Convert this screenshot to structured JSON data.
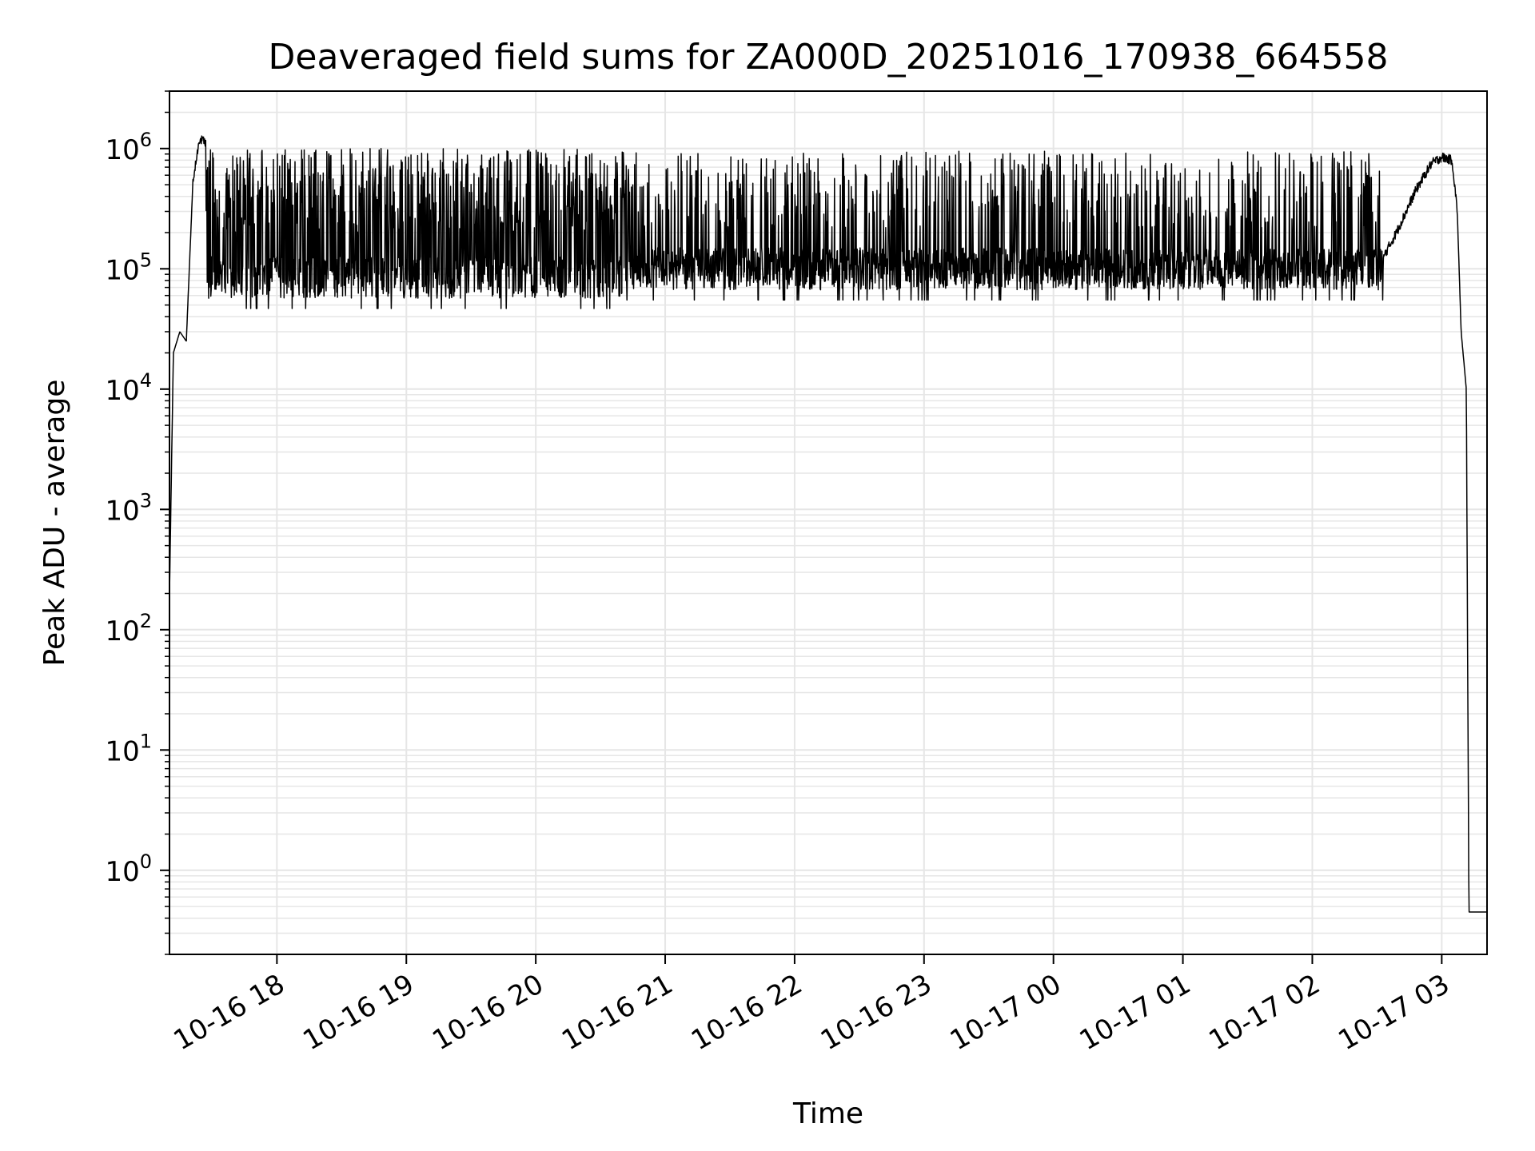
{
  "chart_data": {
    "type": "line",
    "title": "Deaveraged field sums for ZA000D_20251016_170938_664558",
    "xlabel": "Time",
    "ylabel": "Peak ADU - average",
    "yscale": "log",
    "ylim": [
      0.2,
      3000000
    ],
    "xlim_hours": [
      17.17,
      27.35
    ],
    "grid": true,
    "line_color": "#000000",
    "grid_color": "#e6e6e6",
    "x_ticks": [
      {
        "label": "10-16 18",
        "hour": 18
      },
      {
        "label": "10-16 19",
        "hour": 19
      },
      {
        "label": "10-16 20",
        "hour": 20
      },
      {
        "label": "10-16 21",
        "hour": 21
      },
      {
        "label": "10-16 22",
        "hour": 22
      },
      {
        "label": "10-16 23",
        "hour": 23
      },
      {
        "label": "10-17 00",
        "hour": 24
      },
      {
        "label": "10-17 01",
        "hour": 25
      },
      {
        "label": "10-17 02",
        "hour": 26
      },
      {
        "label": "10-17 03",
        "hour": 27
      }
    ],
    "y_ticks": [
      {
        "base": "10",
        "exp": "0",
        "value": 1
      },
      {
        "base": "10",
        "exp": "1",
        "value": 10
      },
      {
        "base": "10",
        "exp": "2",
        "value": 100
      },
      {
        "base": "10",
        "exp": "3",
        "value": 1000
      },
      {
        "base": "10",
        "exp": "4",
        "value": 10000
      },
      {
        "base": "10",
        "exp": "5",
        "value": 100000
      },
      {
        "base": "10",
        "exp": "6",
        "value": 1000000
      }
    ],
    "series": [
      {
        "name": "deaveraged field sums",
        "envelope": [
          {
            "hour": 17.17,
            "value": 200
          },
          {
            "hour": 17.2,
            "value": 20000
          },
          {
            "hour": 17.25,
            "value": 30000
          },
          {
            "hour": 17.3,
            "value": 25000
          },
          {
            "hour": 17.35,
            "value": 500000
          },
          {
            "hour": 17.4,
            "value": 1200000
          },
          {
            "hour": 17.46,
            "value": 1100000
          },
          {
            "hour": 17.55,
            "value": 700000
          },
          {
            "hour": 17.65,
            "value": 400000
          },
          {
            "hour": 17.75,
            "value": 200000
          },
          {
            "hour": 17.85,
            "value": 100000
          },
          {
            "hour": 20.7,
            "value": 100000
          },
          {
            "hour": 26.5,
            "value": 100000
          },
          {
            "hour": 26.65,
            "value": 200000
          },
          {
            "hour": 26.8,
            "value": 450000
          },
          {
            "hour": 26.92,
            "value": 750000
          },
          {
            "hour": 27.0,
            "value": 850000
          },
          {
            "hour": 27.08,
            "value": 800000
          },
          {
            "hour": 27.12,
            "value": 300000
          },
          {
            "hour": 27.15,
            "value": 30000
          },
          {
            "hour": 27.19,
            "value": 10000
          },
          {
            "hour": 27.21,
            "value": 0.45
          },
          {
            "hour": 27.35,
            "value": 0.45
          }
        ],
        "noisy_segments": [
          {
            "from_hour": 17.45,
            "to_hour": 20.7,
            "floor": 85000,
            "peak": 1000000,
            "spike_rate": 0.45
          },
          {
            "from_hour": 20.7,
            "to_hour": 26.55,
            "floor": 100000,
            "peak": 950000,
            "spike_rate": 0.25
          }
        ]
      }
    ]
  }
}
